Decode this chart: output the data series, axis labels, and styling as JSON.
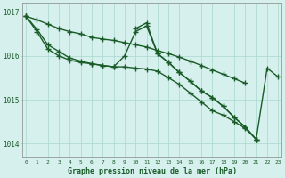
{
  "title": "Graphe pression niveau de la mer (hPa)",
  "hours": [
    0,
    1,
    2,
    3,
    4,
    5,
    6,
    7,
    8,
    9,
    10,
    11,
    12,
    13,
    14,
    15,
    16,
    17,
    18,
    19,
    20,
    21,
    22,
    23
  ],
  "ylim": [
    1013.7,
    1017.2
  ],
  "yticks": [
    1014,
    1015,
    1016,
    1017
  ],
  "background_color": "#d6f0ee",
  "grid_color": "#a8d8cc",
  "line_color": "#1a5c28",
  "line1": [
    1016.9,
    1016.82,
    1016.72,
    1016.62,
    1016.55,
    1016.5,
    1016.42,
    1016.38,
    1016.35,
    1016.3,
    1016.25,
    1016.2,
    1016.12,
    1016.05,
    1015.97,
    1015.88,
    1015.78,
    1015.68,
    1015.58,
    1015.48,
    1015.38,
    null,
    null,
    null
  ],
  "line2": [
    1016.9,
    1016.6,
    1016.25,
    1016.1,
    1015.95,
    1015.88,
    1015.82,
    1015.78,
    1015.75,
    1016.0,
    1016.55,
    1016.68,
    1016.05,
    1015.85,
    1015.62,
    1015.42,
    1015.2,
    1015.05,
    1014.85,
    1014.6,
    1014.38,
    1014.1,
    null,
    null
  ],
  "line3": [
    1016.9,
    1016.55,
    1016.15,
    1016.0,
    1015.9,
    1015.85,
    1015.82,
    1015.78,
    1015.75,
    1015.75,
    1015.72,
    1015.7,
    1015.65,
    1015.5,
    1015.35,
    1015.15,
    1014.95,
    1014.75,
    1014.65,
    1014.5,
    1014.35,
    1014.1,
    null,
    null
  ],
  "line4": [
    null,
    null,
    null,
    null,
    null,
    null,
    null,
    null,
    null,
    null,
    1016.62,
    1016.75,
    1016.05,
    1015.85,
    1015.62,
    1015.42,
    1015.2,
    1015.05,
    1014.85,
    1014.6,
    1014.38,
    1014.1,
    1015.72,
    1015.52
  ]
}
